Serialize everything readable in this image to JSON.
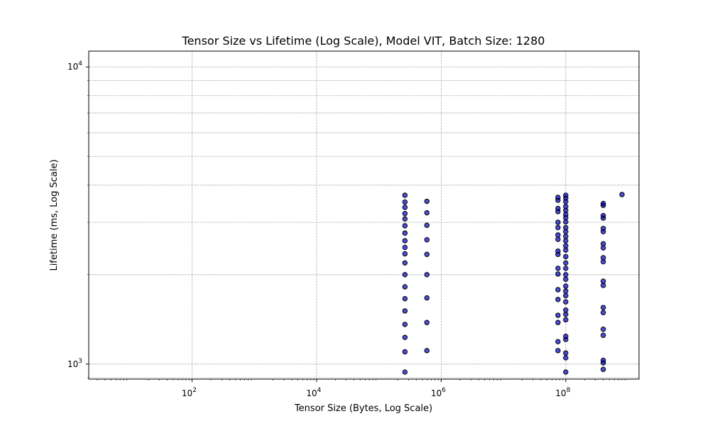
{
  "chart_data": {
    "type": "scatter",
    "title": "Tensor Size vs Lifetime (Log Scale), Model VIT, Batch Size: 1280",
    "xlabel": "Tensor Size (Bytes, Log Scale)",
    "ylabel": "Lifetime (ms, Log Scale)",
    "xscale": "log",
    "yscale": "log",
    "xlim": [
      2.2,
      1500000000
    ],
    "ylim": [
      890,
      11300
    ],
    "grid": true,
    "legend": "none",
    "x_ticks": [
      {
        "base": "10",
        "exp": "2",
        "value": 100
      },
      {
        "base": "10",
        "exp": "4",
        "value": 10000
      },
      {
        "base": "10",
        "exp": "6",
        "value": 1000000
      },
      {
        "base": "10",
        "exp": "8",
        "value": 100000000
      }
    ],
    "y_ticks": [
      {
        "base": "10",
        "exp": "3",
        "value": 1000
      },
      {
        "base": "10",
        "exp": "4",
        "value": 10000
      }
    ],
    "marker_color": "#0000cc",
    "marker_edge": "#000000",
    "columns": [
      {
        "x": 262144,
        "y": [
          940,
          1100,
          1230,
          1360,
          1510,
          1660,
          1820,
          2000,
          2190,
          2350,
          2470,
          2600,
          2760,
          2920,
          3080,
          3210,
          3370,
          3510,
          3700
        ]
      },
      {
        "x": 589824,
        "y": [
          1110,
          1380,
          1670,
          2000,
          2340,
          2620,
          2930,
          3230,
          3530
        ]
      },
      {
        "x": 75000000,
        "y": [
          880,
          1110,
          1190,
          1380,
          1460,
          1650,
          1780,
          2010,
          2100,
          2340,
          2400,
          2630,
          2720,
          2880,
          3000,
          3260,
          3340,
          3560,
          3640
        ]
      },
      {
        "x": 100000000,
        "y": [
          880,
          940,
          1050,
          1090,
          1210,
          1240,
          1410,
          1470,
          1520,
          1620,
          1700,
          1760,
          1830,
          1930,
          2000,
          2100,
          2190,
          2300,
          2420,
          2500,
          2600,
          2690,
          2790,
          2880,
          3010,
          3110,
          3190,
          3290,
          3390,
          3520,
          3620,
          3700
        ]
      },
      {
        "x": 400000000,
        "y": [
          960,
          1010,
          1030,
          1250,
          1310,
          1490,
          1550,
          1840,
          1900,
          2210,
          2280,
          2460,
          2540,
          2790,
          2860,
          3100,
          3160,
          3420,
          3470
        ]
      },
      {
        "x": 800000000,
        "y": [
          3720
        ]
      }
    ]
  }
}
